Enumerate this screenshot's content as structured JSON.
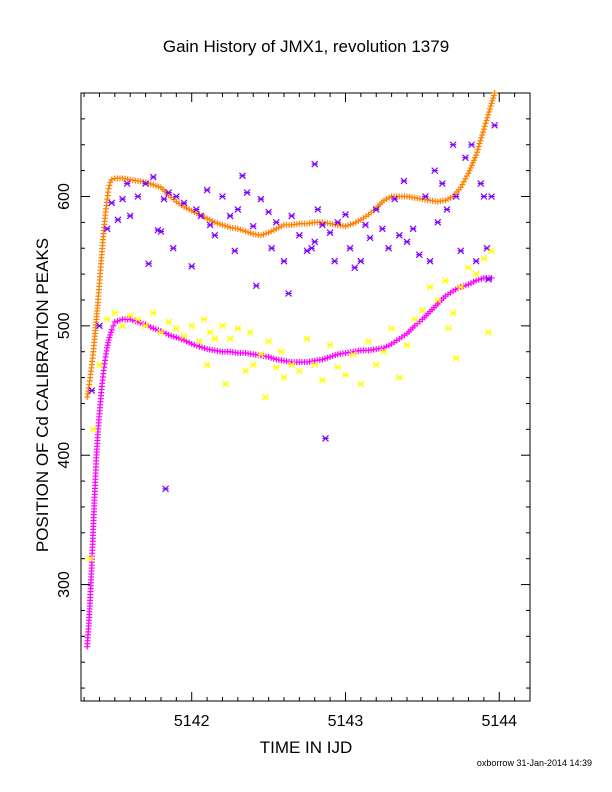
{
  "chart_data": {
    "type": "scatter",
    "title": "Gain History of JMX1, revolution 1379",
    "xlabel": "TIME IN IJD",
    "ylabel": "POSITION OF Cd CALIBRATION PEAKS",
    "xlim": [
      5141.28,
      5144.2
    ],
    "ylim": [
      210,
      680
    ],
    "xticks": [
      5142,
      5143,
      5144
    ],
    "yticks": [
      300,
      400,
      500,
      600
    ],
    "grid": false,
    "colors": {
      "orange": "#ff8000",
      "magenta": "#ff00ff",
      "purple": "#8000ff",
      "yellow": "#ffff00"
    },
    "series": [
      {
        "color": "orange",
        "marker": "plus",
        "values_xy": [
          [
            5141.32,
            445
          ],
          [
            5141.33,
            452
          ],
          [
            5141.34,
            460
          ],
          [
            5141.35,
            470
          ],
          [
            5141.36,
            480
          ],
          [
            5141.37,
            492
          ],
          [
            5141.38,
            505
          ],
          [
            5141.39,
            518
          ],
          [
            5141.4,
            533
          ],
          [
            5141.41,
            548
          ],
          [
            5141.42,
            562
          ],
          [
            5141.43,
            576
          ],
          [
            5141.44,
            588
          ],
          [
            5141.45,
            598
          ],
          [
            5141.46,
            606
          ],
          [
            5141.47,
            611
          ],
          [
            5141.48,
            613
          ],
          [
            5141.5,
            614
          ],
          [
            5141.55,
            614
          ],
          [
            5141.6,
            613
          ],
          [
            5141.65,
            612
          ],
          [
            5141.7,
            611
          ],
          [
            5141.75,
            609
          ],
          [
            5141.8,
            607
          ],
          [
            5141.85,
            601
          ],
          [
            5141.9,
            596
          ],
          [
            5141.95,
            592
          ],
          [
            5142.0,
            589
          ],
          [
            5142.05,
            586
          ],
          [
            5142.1,
            583
          ],
          [
            5142.15,
            580
          ],
          [
            5142.2,
            578
          ],
          [
            5142.25,
            576
          ],
          [
            5142.3,
            575
          ],
          [
            5142.35,
            573
          ],
          [
            5142.4,
            571
          ],
          [
            5142.45,
            570
          ],
          [
            5142.5,
            572
          ],
          [
            5142.55,
            575
          ],
          [
            5142.6,
            578
          ],
          [
            5142.65,
            578
          ],
          [
            5142.7,
            579
          ],
          [
            5142.75,
            579
          ],
          [
            5142.8,
            580
          ],
          [
            5142.85,
            580
          ],
          [
            5142.9,
            579
          ],
          [
            5142.95,
            578
          ],
          [
            5143.0,
            577
          ],
          [
            5143.05,
            579
          ],
          [
            5143.1,
            582
          ],
          [
            5143.15,
            586
          ],
          [
            5143.2,
            591
          ],
          [
            5143.25,
            597
          ],
          [
            5143.3,
            600
          ],
          [
            5143.35,
            600
          ],
          [
            5143.4,
            600
          ],
          [
            5143.45,
            599
          ],
          [
            5143.5,
            598
          ],
          [
            5143.55,
            597
          ],
          [
            5143.6,
            596
          ],
          [
            5143.65,
            597
          ],
          [
            5143.7,
            600
          ],
          [
            5143.75,
            607
          ],
          [
            5143.8,
            618
          ],
          [
            5143.85,
            632
          ],
          [
            5143.9,
            652
          ],
          [
            5143.95,
            672
          ],
          [
            5143.97,
            680
          ]
        ]
      },
      {
        "color": "magenta",
        "marker": "plus",
        "values_xy": [
          [
            5141.32,
            252
          ],
          [
            5141.33,
            268
          ],
          [
            5141.34,
            290
          ],
          [
            5141.35,
            315
          ],
          [
            5141.36,
            345
          ],
          [
            5141.37,
            372
          ],
          [
            5141.38,
            398
          ],
          [
            5141.39,
            418
          ],
          [
            5141.4,
            432
          ],
          [
            5141.41,
            446
          ],
          [
            5141.42,
            458
          ],
          [
            5141.43,
            468
          ],
          [
            5141.44,
            476
          ],
          [
            5141.45,
            483
          ],
          [
            5141.46,
            489
          ],
          [
            5141.47,
            493
          ],
          [
            5141.48,
            497
          ],
          [
            5141.49,
            500
          ],
          [
            5141.5,
            503
          ],
          [
            5141.55,
            505
          ],
          [
            5141.6,
            505
          ],
          [
            5141.65,
            503
          ],
          [
            5141.7,
            501
          ],
          [
            5141.75,
            498
          ],
          [
            5141.8,
            496
          ],
          [
            5141.85,
            493
          ],
          [
            5141.9,
            491
          ],
          [
            5141.95,
            489
          ],
          [
            5142.0,
            486
          ],
          [
            5142.05,
            484
          ],
          [
            5142.1,
            482
          ],
          [
            5142.15,
            481
          ],
          [
            5142.2,
            480
          ],
          [
            5142.25,
            480
          ],
          [
            5142.3,
            479
          ],
          [
            5142.35,
            479
          ],
          [
            5142.4,
            478
          ],
          [
            5142.45,
            477
          ],
          [
            5142.5,
            476
          ],
          [
            5142.55,
            474
          ],
          [
            5142.6,
            473
          ],
          [
            5142.65,
            472
          ],
          [
            5142.7,
            472
          ],
          [
            5142.75,
            472
          ],
          [
            5142.8,
            473
          ],
          [
            5142.85,
            474
          ],
          [
            5142.9,
            476
          ],
          [
            5142.95,
            478
          ],
          [
            5143.0,
            479
          ],
          [
            5143.05,
            480
          ],
          [
            5143.1,
            481
          ],
          [
            5143.15,
            481
          ],
          [
            5143.2,
            482
          ],
          [
            5143.25,
            483
          ],
          [
            5143.3,
            486
          ],
          [
            5143.35,
            490
          ],
          [
            5143.4,
            494
          ],
          [
            5143.45,
            500
          ],
          [
            5143.5,
            505
          ],
          [
            5143.55,
            511
          ],
          [
            5143.6,
            517
          ],
          [
            5143.65,
            523
          ],
          [
            5143.7,
            527
          ],
          [
            5143.75,
            530
          ],
          [
            5143.8,
            532
          ],
          [
            5143.85,
            535
          ],
          [
            5143.9,
            537
          ],
          [
            5143.95,
            537
          ]
        ]
      },
      {
        "color": "purple",
        "marker": "star",
        "values_xy": [
          [
            5141.35,
            450
          ],
          [
            5141.4,
            500
          ],
          [
            5141.45,
            575
          ],
          [
            5141.48,
            595
          ],
          [
            5141.52,
            582
          ],
          [
            5141.55,
            598
          ],
          [
            5141.58,
            610
          ],
          [
            5141.6,
            585
          ],
          [
            5141.65,
            600
          ],
          [
            5141.7,
            610
          ],
          [
            5141.72,
            548
          ],
          [
            5141.75,
            615
          ],
          [
            5141.78,
            574
          ],
          [
            5141.8,
            573
          ],
          [
            5141.82,
            598
          ],
          [
            5141.85,
            603
          ],
          [
            5141.88,
            560
          ],
          [
            5141.9,
            600
          ],
          [
            5141.95,
            595
          ],
          [
            5142.0,
            546
          ],
          [
            5142.03,
            590
          ],
          [
            5142.06,
            585
          ],
          [
            5142.1,
            605
          ],
          [
            5142.12,
            578
          ],
          [
            5142.15,
            570
          ],
          [
            5142.2,
            600
          ],
          [
            5142.25,
            585
          ],
          [
            5142.28,
            558
          ],
          [
            5142.3,
            590
          ],
          [
            5142.33,
            616
          ],
          [
            5142.36,
            603
          ],
          [
            5142.4,
            577
          ],
          [
            5142.42,
            531
          ],
          [
            5142.45,
            598
          ],
          [
            5142.5,
            588
          ],
          [
            5142.52,
            560
          ],
          [
            5142.55,
            580
          ],
          [
            5142.6,
            550
          ],
          [
            5142.63,
            525
          ],
          [
            5142.65,
            585
          ],
          [
            5142.7,
            570
          ],
          [
            5142.75,
            558
          ],
          [
            5142.78,
            560
          ],
          [
            5142.8,
            565
          ],
          [
            5142.82,
            590
          ],
          [
            5142.85,
            578
          ],
          [
            5142.87,
            413
          ],
          [
            5142.9,
            572
          ],
          [
            5142.93,
            550
          ],
          [
            5142.95,
            580
          ],
          [
            5143.0,
            586
          ],
          [
            5143.03,
            560
          ],
          [
            5143.06,
            545
          ],
          [
            5143.1,
            550
          ],
          [
            5143.13,
            578
          ],
          [
            5143.16,
            568
          ],
          [
            5143.2,
            590
          ],
          [
            5143.24,
            575
          ],
          [
            5143.28,
            560
          ],
          [
            5143.32,
            598
          ],
          [
            5143.35,
            570
          ],
          [
            5143.38,
            612
          ],
          [
            5143.4,
            565
          ],
          [
            5143.44,
            575
          ],
          [
            5143.48,
            555
          ],
          [
            5143.52,
            600
          ],
          [
            5143.55,
            550
          ],
          [
            5143.58,
            620
          ],
          [
            5143.6,
            580
          ],
          [
            5143.63,
            610
          ],
          [
            5143.66,
            590
          ],
          [
            5143.7,
            640
          ],
          [
            5143.72,
            600
          ],
          [
            5143.75,
            558
          ],
          [
            5143.78,
            630
          ],
          [
            5143.82,
            640
          ],
          [
            5143.85,
            550
          ],
          [
            5143.88,
            610
          ],
          [
            5143.9,
            600
          ],
          [
            5143.92,
            560
          ],
          [
            5143.95,
            600
          ],
          [
            5143.97,
            655
          ],
          [
            5141.83,
            374
          ],
          [
            5142.8,
            625
          ],
          [
            5143.93,
            536
          ]
        ]
      },
      {
        "color": "yellow",
        "marker": "star",
        "values_xy": [
          [
            5141.34,
            320
          ],
          [
            5141.36,
            420
          ],
          [
            5141.4,
            470
          ],
          [
            5141.45,
            505
          ],
          [
            5141.5,
            510
          ],
          [
            5141.55,
            500
          ],
          [
            5141.6,
            508
          ],
          [
            5141.65,
            505
          ],
          [
            5141.7,
            500
          ],
          [
            5141.75,
            510
          ],
          [
            5141.8,
            495
          ],
          [
            5141.85,
            503
          ],
          [
            5141.9,
            498
          ],
          [
            5141.95,
            492
          ],
          [
            5142.0,
            500
          ],
          [
            5142.05,
            488
          ],
          [
            5142.08,
            505
          ],
          [
            5142.1,
            470
          ],
          [
            5142.12,
            495
          ],
          [
            5142.15,
            490
          ],
          [
            5142.2,
            500
          ],
          [
            5142.22,
            455
          ],
          [
            5142.25,
            490
          ],
          [
            5142.3,
            498
          ],
          [
            5142.35,
            465
          ],
          [
            5142.38,
            495
          ],
          [
            5142.4,
            470
          ],
          [
            5142.45,
            478
          ],
          [
            5142.48,
            445
          ],
          [
            5142.5,
            488
          ],
          [
            5142.55,
            468
          ],
          [
            5142.58,
            480
          ],
          [
            5142.6,
            460
          ],
          [
            5142.65,
            470
          ],
          [
            5142.7,
            465
          ],
          [
            5142.75,
            490
          ],
          [
            5142.8,
            470
          ],
          [
            5142.85,
            458
          ],
          [
            5142.9,
            485
          ],
          [
            5142.95,
            468
          ],
          [
            5143.0,
            462
          ],
          [
            5143.05,
            478
          ],
          [
            5143.1,
            455
          ],
          [
            5143.15,
            488
          ],
          [
            5143.2,
            470
          ],
          [
            5143.25,
            480
          ],
          [
            5143.3,
            498
          ],
          [
            5143.35,
            460
          ],
          [
            5143.4,
            485
          ],
          [
            5143.45,
            505
          ],
          [
            5143.5,
            512
          ],
          [
            5143.55,
            530
          ],
          [
            5143.6,
            520
          ],
          [
            5143.65,
            535
          ],
          [
            5143.7,
            510
          ],
          [
            5143.72,
            475
          ],
          [
            5143.75,
            530
          ],
          [
            5143.8,
            545
          ],
          [
            5143.85,
            540
          ],
          [
            5143.9,
            552
          ],
          [
            5143.95,
            558
          ],
          [
            5143.93,
            495
          ],
          [
            5143.67,
            498
          ]
        ]
      }
    ]
  },
  "footer": "oxborrow 31-Jan-2014 14:39"
}
